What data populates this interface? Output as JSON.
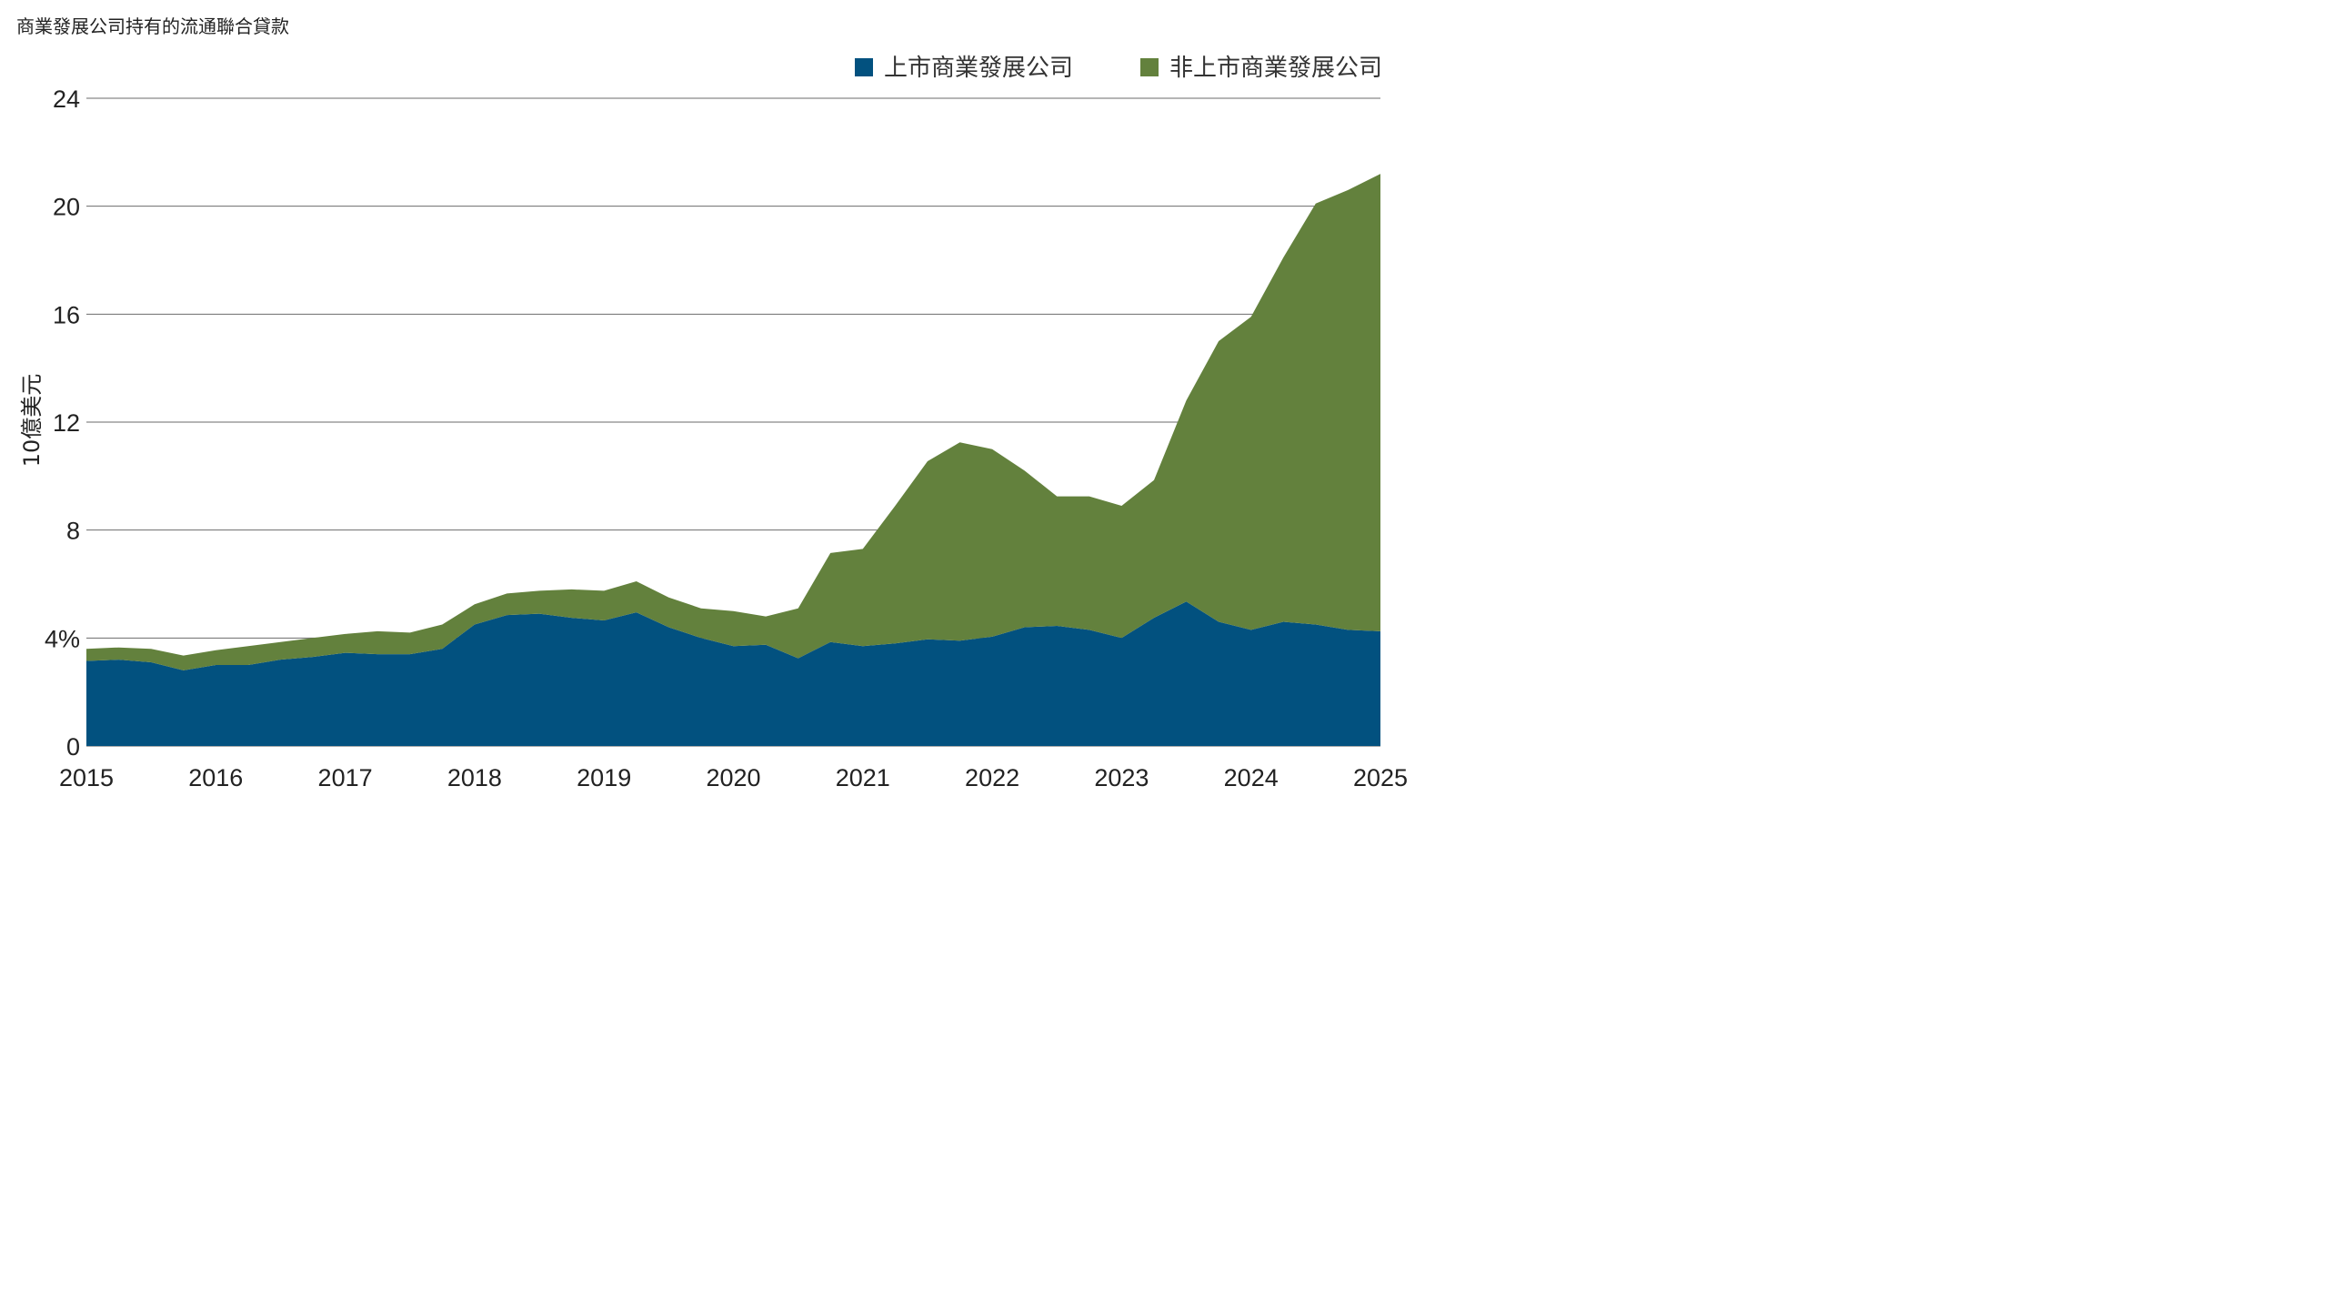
{
  "chart_data": {
    "type": "area",
    "stacked": true,
    "title": "商業發展公司持有的流通聯合貸款",
    "ylabel": "10億美元",
    "xlabel": "",
    "ylim": [
      0,
      24
    ],
    "xlim": [
      2015,
      2025
    ],
    "grid": true,
    "legend_position": "top-right",
    "x_ticks": [
      "2015",
      "2016",
      "2017",
      "2018",
      "2019",
      "2020",
      "2021",
      "2022",
      "2023",
      "2024",
      "2025"
    ],
    "y_ticks": [
      "0",
      "4%",
      "8",
      "12",
      "16",
      "20",
      "24"
    ],
    "x": [
      2015.0,
      2015.25,
      2015.5,
      2015.75,
      2016.0,
      2016.25,
      2016.5,
      2016.75,
      2017.0,
      2017.25,
      2017.5,
      2017.75,
      2018.0,
      2018.25,
      2018.5,
      2018.75,
      2019.0,
      2019.25,
      2019.5,
      2019.75,
      2020.0,
      2020.25,
      2020.5,
      2020.75,
      2021.0,
      2021.25,
      2021.5,
      2021.75,
      2022.0,
      2022.25,
      2022.5,
      2022.75,
      2023.0,
      2023.25,
      2023.5,
      2023.75,
      2024.0,
      2024.25,
      2024.5,
      2024.75,
      2025.0
    ],
    "series": [
      {
        "name": "上市商業發展公司",
        "color": "#02517f",
        "values": [
          3.15,
          3.2,
          3.1,
          2.8,
          3.0,
          3.0,
          3.2,
          3.3,
          3.45,
          3.4,
          3.4,
          3.6,
          4.5,
          4.85,
          4.9,
          4.75,
          4.65,
          4.95,
          4.4,
          4.0,
          3.7,
          3.75,
          3.25,
          3.85,
          3.7,
          3.8,
          3.95,
          3.9,
          4.05,
          4.4,
          4.45,
          4.3,
          4.0,
          4.75,
          5.35,
          4.6,
          4.3,
          4.6,
          4.5,
          4.3,
          4.25
        ]
      },
      {
        "name": "非上市商業發展公司",
        "color": "#63813d",
        "values": [
          0.45,
          0.45,
          0.5,
          0.55,
          0.55,
          0.7,
          0.65,
          0.7,
          0.7,
          0.85,
          0.8,
          0.9,
          0.75,
          0.8,
          0.85,
          1.05,
          1.1,
          1.15,
          1.1,
          1.1,
          1.3,
          1.05,
          1.85,
          3.3,
          3.6,
          5.1,
          6.6,
          7.35,
          6.95,
          5.8,
          4.8,
          4.95,
          4.9,
          5.1,
          7.45,
          10.4,
          11.6,
          13.5,
          15.6,
          16.3,
          16.95
        ]
      }
    ]
  }
}
